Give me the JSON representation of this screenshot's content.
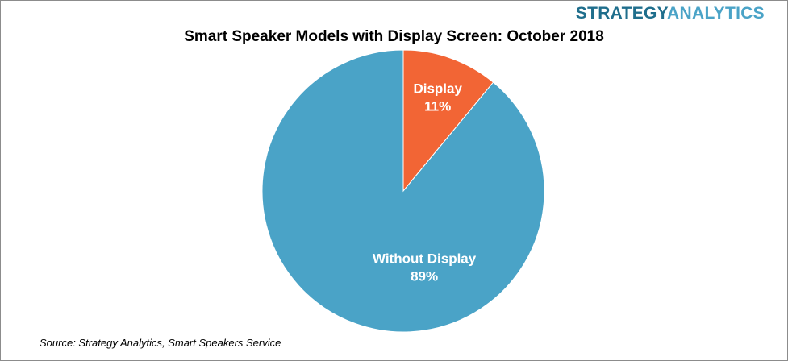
{
  "logo": {
    "part1": "STRATEGY",
    "part2": "ANALYTICS"
  },
  "source": "Source:  Strategy Analytics, Smart Speakers Service",
  "chart_data": {
    "type": "pie",
    "title": "Smart Speaker Models with Display Screen: October 2018",
    "slices": [
      {
        "label": "Display",
        "value": 11,
        "value_label": "11%",
        "color": "#f26535"
      },
      {
        "label": "Without Display",
        "value": 89,
        "value_label": "89%",
        "color": "#4aa3c7"
      }
    ]
  }
}
